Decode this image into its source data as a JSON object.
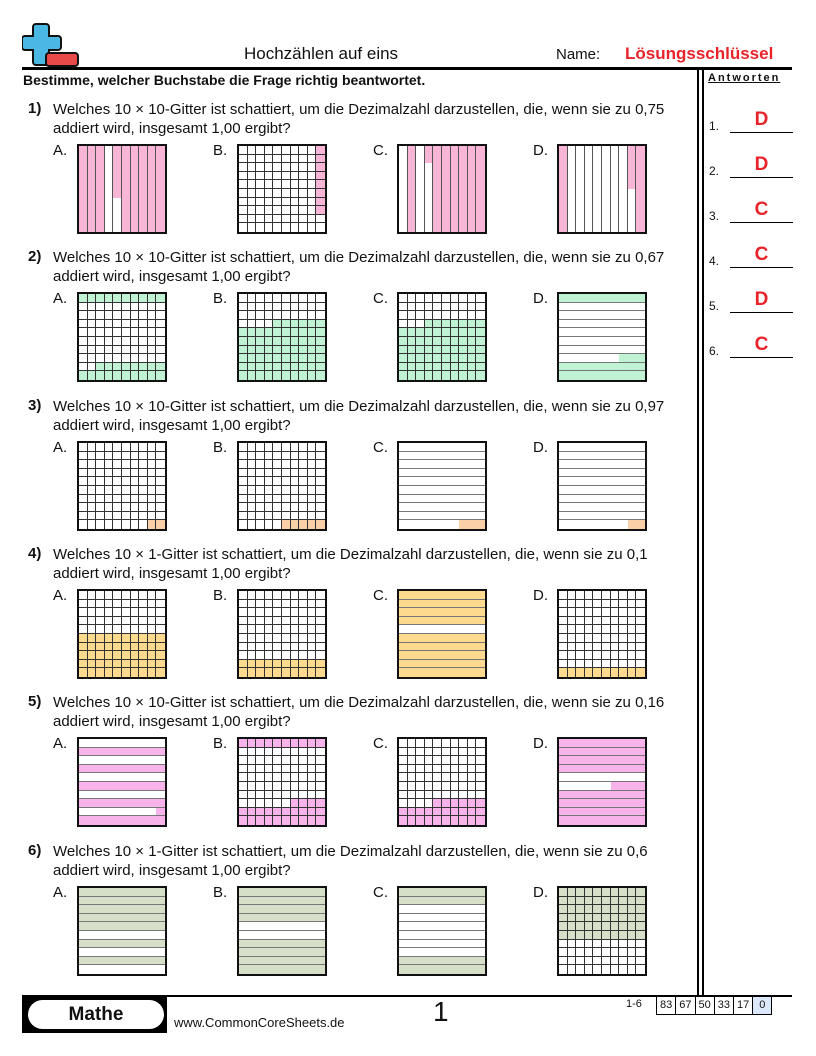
{
  "header": {
    "title": "Hochzählen auf eins",
    "name_label": "Name:",
    "name_value": "Lösungsschlüssel",
    "instruction": "Bestimme, welcher Buchstabe die Frage richtig beantwortet."
  },
  "answers": {
    "heading": "Antworten",
    "items": [
      {
        "num": "1.",
        "value": "D"
      },
      {
        "num": "2.",
        "value": "D"
      },
      {
        "num": "3.",
        "value": "C"
      },
      {
        "num": "4.",
        "value": "C"
      },
      {
        "num": "5.",
        "value": "D"
      },
      {
        "num": "6.",
        "value": "C"
      }
    ]
  },
  "colors": {
    "accent_red": "#e8232a",
    "pink": "#f9b5d6",
    "green": "#bff3d3",
    "peach": "#fbd0a8",
    "yellow": "#fdda8e",
    "magenta": "#f8b4ea",
    "olive": "#d6e0c8"
  },
  "questions": [
    {
      "num": "1)",
      "text": "Welches 10 × 10-Gitter ist schattiert, um die Dezimalzahl darzustellen, die, wenn sie zu 0,75 addiert wird, insgesamt 1,00 ergibt?",
      "color": "pink",
      "options": [
        {
          "label": "A.",
          "type": "cols",
          "shade": [
            "1110111111",
            "1110111111",
            "1110111111",
            "1110111111",
            "1110111111",
            "1110111111",
            "1110011111",
            "1110011111",
            "1110011111",
            "1110011111"
          ]
        },
        {
          "label": "B.",
          "type": "g100",
          "shade": [
            "0000000001",
            "0000000001",
            "0000000001",
            "0000000001",
            "0000000001",
            "0000000001",
            "0000000001",
            "0000000001",
            "0000000000",
            "0000000000"
          ]
        },
        {
          "label": "C.",
          "type": "cols",
          "shade": [
            "0101111111",
            "0101111111",
            "0100111111",
            "0100111111",
            "0100111111",
            "0100111111",
            "0100111111",
            "0100111111",
            "0100111111",
            "0100111111"
          ]
        },
        {
          "label": "D.",
          "type": "cols",
          "shade": [
            "1000000011",
            "1000000011",
            "1000000011",
            "1000000011",
            "1000000011",
            "1000000001",
            "1000000001",
            "1000000001",
            "1000000001",
            "1000000001"
          ]
        }
      ]
    },
    {
      "num": "2)",
      "text": "Welches 10 × 10-Gitter ist schattiert, um die Dezimalzahl darzustellen, die, wenn sie zu 0,67 addiert wird, insgesamt 1,00 ergibt?",
      "color": "green",
      "options": [
        {
          "label": "A.",
          "type": "g100",
          "shade": [
            "1111111111",
            "0000000000",
            "0000000000",
            "0000000000",
            "0000000000",
            "0000000000",
            "0000000000",
            "0000000000",
            "0011111111",
            "1111111111"
          ]
        },
        {
          "label": "B.",
          "type": "g100",
          "shade": [
            "0000000000",
            "0000000000",
            "0000000000",
            "0000111111",
            "1111111111",
            "1111111111",
            "1111111111",
            "1111111111",
            "1111111111",
            "1111111111"
          ]
        },
        {
          "label": "C.",
          "type": "g100",
          "shade": [
            "0000000000",
            "0000000000",
            "0000000000",
            "0001111111",
            "1111111111",
            "1111111111",
            "1111111111",
            "1111111111",
            "1111111111",
            "1111111111"
          ]
        },
        {
          "label": "D.",
          "type": "rows",
          "shade": [
            "1111111111",
            "0000000000",
            "0000000000",
            "0000000000",
            "0000000000",
            "0000000000",
            "0000000000",
            "0000000111",
            "1111111111",
            "1111111111"
          ]
        }
      ]
    },
    {
      "num": "3)",
      "text": "Welches 10 × 10-Gitter ist schattiert, um die Dezimalzahl darzustellen, die, wenn sie zu 0,97 addiert wird, insgesamt 1,00 ergibt?",
      "color": "peach",
      "options": [
        {
          "label": "A.",
          "type": "g100",
          "shade": [
            "0000000000",
            "0000000000",
            "0000000000",
            "0000000000",
            "0000000000",
            "0000000000",
            "0000000000",
            "0000000000",
            "0000000000",
            "0000000011"
          ]
        },
        {
          "label": "B.",
          "type": "g100",
          "shade": [
            "0000000000",
            "0000000000",
            "0000000000",
            "0000000000",
            "0000000000",
            "0000000000",
            "0000000000",
            "0000000000",
            "0000000000",
            "0000011111"
          ]
        },
        {
          "label": "C.",
          "type": "rows",
          "shade": [
            "0000000000",
            "0000000000",
            "0000000000",
            "0000000000",
            "0000000000",
            "0000000000",
            "0000000000",
            "0000000000",
            "0000000000",
            "0000000111"
          ]
        },
        {
          "label": "D.",
          "type": "rows",
          "shade": [
            "0000000000",
            "0000000000",
            "0000000000",
            "0000000000",
            "0000000000",
            "0000000000",
            "0000000000",
            "0000000000",
            "0000000000",
            "0000000011"
          ]
        }
      ]
    },
    {
      "num": "4)",
      "text": "Welches 10 × 1-Gitter ist schattiert, um die Dezimalzahl darzustellen, die, wenn sie zu 0,1 addiert wird, insgesamt 1,00 ergibt?",
      "color": "yellow",
      "options": [
        {
          "label": "A.",
          "type": "g100",
          "shade": [
            "0000000000",
            "0000000000",
            "0000000000",
            "0000000000",
            "0000000000",
            "1111111111",
            "1111111111",
            "1111111111",
            "1111111111",
            "1111111111"
          ]
        },
        {
          "label": "B.",
          "type": "g100",
          "shade": [
            "0000000000",
            "0000000000",
            "0000000000",
            "0000000000",
            "0000000000",
            "0000000000",
            "0000000000",
            "0000000000",
            "1111111111",
            "1111111111"
          ]
        },
        {
          "label": "C.",
          "type": "rows",
          "shade": [
            "1111111111",
            "1111111111",
            "1111111111",
            "1111111111",
            "0000000000",
            "1111111111",
            "1111111111",
            "1111111111",
            "1111111111",
            "1111111111"
          ]
        },
        {
          "label": "D.",
          "type": "g100",
          "shade": [
            "0000000000",
            "0000000000",
            "0000000000",
            "0000000000",
            "0000000000",
            "0000000000",
            "0000000000",
            "0000000000",
            "0000000000",
            "1111111111"
          ]
        }
      ]
    },
    {
      "num": "5)",
      "text": "Welches 10 × 10-Gitter ist schattiert, um die Dezimalzahl darzustellen, die, wenn sie zu 0,16 addiert wird, insgesamt 1,00 ergibt?",
      "color": "magenta",
      "options": [
        {
          "label": "A.",
          "type": "rows",
          "shade": [
            "0000000000",
            "1111111111",
            "0000000000",
            "1111111111",
            "0000000000",
            "1111111111",
            "0000000000",
            "1111111111",
            "0000000001",
            "1111111111"
          ]
        },
        {
          "label": "B.",
          "type": "g100",
          "shade": [
            "1111111111",
            "0000000000",
            "0000000000",
            "0000000000",
            "0000000000",
            "0000000000",
            "0000000000",
            "0000001111",
            "1111111111",
            "1111111111"
          ]
        },
        {
          "label": "C.",
          "type": "g100",
          "shade": [
            "0000000000",
            "0000000000",
            "0000000000",
            "0000000000",
            "0000000000",
            "0000000000",
            "0000000000",
            "0000111111",
            "1111111111",
            "1111111111"
          ]
        },
        {
          "label": "D.",
          "type": "rows",
          "shade": [
            "1111111111",
            "1111111111",
            "1111111111",
            "1111111111",
            "0000000000",
            "0000001111",
            "1111111111",
            "1111111111",
            "1111111111",
            "1111111111"
          ]
        }
      ]
    },
    {
      "num": "6)",
      "text": "Welches 10 × 1-Gitter ist schattiert, um die Dezimalzahl darzustellen, die, wenn sie zu 0,6 addiert wird, insgesamt 1,00 ergibt?",
      "color": "olive",
      "options": [
        {
          "label": "A.",
          "type": "rows",
          "shade": [
            "1111111111",
            "1111111111",
            "1111111111",
            "1111111111",
            "1111111111",
            "0000000000",
            "1111111111",
            "0000000000",
            "1111111111",
            "0000000000"
          ]
        },
        {
          "label": "B.",
          "type": "rows",
          "shade": [
            "1111111111",
            "1111111111",
            "1111111111",
            "1111111111",
            "0000000000",
            "0000000000",
            "1111111111",
            "1111111111",
            "1111111111",
            "1111111111"
          ]
        },
        {
          "label": "C.",
          "type": "rows",
          "shade": [
            "1111111111",
            "1111111111",
            "0000000000",
            "0000000000",
            "0000000000",
            "0000000000",
            "0000000000",
            "0000000000",
            "1111111111",
            "1111111111"
          ]
        },
        {
          "label": "D.",
          "type": "g100",
          "shade": [
            "1111111111",
            "1111111111",
            "1111111111",
            "1111111111",
            "1111111111",
            "1111111111",
            "0000000000",
            "0000000000",
            "0000000000",
            "0000000000"
          ]
        }
      ]
    }
  ],
  "footer": {
    "subject": "Mathe",
    "url": "www.CommonCoreSheets.de",
    "page": "1",
    "score_label": "1-6",
    "scores": [
      "83",
      "67",
      "50",
      "33",
      "17",
      "0"
    ]
  }
}
